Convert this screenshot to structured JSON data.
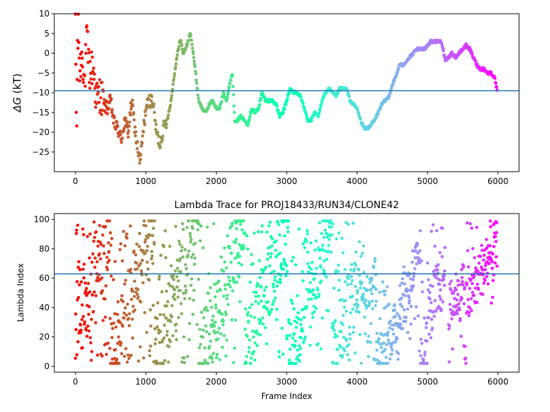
{
  "chart_data": [
    {
      "type": "scatter",
      "title": "",
      "xlabel": "",
      "ylabel": "ΔG (kT)",
      "ylabel_main": "ΔG",
      "ylabel_unit": " (kT)",
      "xlim": [
        -300,
        6300
      ],
      "ylim": [
        -30,
        10
      ],
      "xticks": [
        0,
        1000,
        2000,
        3000,
        4000,
        5000,
        6000
      ],
      "yticks": [
        -25,
        -20,
        -15,
        -10,
        -5,
        0,
        5,
        10
      ],
      "hline": -9.5,
      "hline_color": "#1f77b4",
      "colormap": "rainbow_r",
      "grid": false,
      "series": [
        {
          "trace_points": [
            [
              0,
              10
            ],
            [
              15,
              -22
            ],
            [
              30,
              2
            ],
            [
              45,
              6
            ],
            [
              60,
              -5
            ],
            [
              80,
              -2
            ],
            [
              100,
              0
            ],
            [
              130,
              -8
            ],
            [
              160,
              4
            ],
            [
              200,
              -5
            ],
            [
              250,
              -3
            ],
            [
              300,
              -12
            ],
            [
              350,
              -10
            ],
            [
              400,
              -13
            ],
            [
              450,
              -14
            ],
            [
              500,
              -12
            ],
            [
              550,
              -18
            ],
            [
              600,
              -19
            ],
            [
              650,
              -22
            ],
            [
              700,
              -17
            ],
            [
              750,
              -20
            ],
            [
              800,
              -12
            ],
            [
              850,
              -20
            ],
            [
              900,
              -26
            ],
            [
              920,
              -28
            ],
            [
              950,
              -22
            ],
            [
              1000,
              -14
            ],
            [
              1050,
              -12
            ],
            [
              1100,
              -12
            ],
            [
              1150,
              -20
            ],
            [
              1200,
              -23
            ],
            [
              1250,
              -19
            ],
            [
              1300,
              -17
            ],
            [
              1350,
              -13
            ],
            [
              1400,
              -6
            ],
            [
              1450,
              0
            ],
            [
              1480,
              3
            ],
            [
              1500,
              3
            ],
            [
              1530,
              0
            ],
            [
              1560,
              1
            ],
            [
              1600,
              3
            ],
            [
              1630,
              5
            ],
            [
              1660,
              2
            ],
            [
              1700,
              -4
            ],
            [
              1750,
              -12
            ],
            [
              1800,
              -14
            ],
            [
              1850,
              -15
            ],
            [
              1900,
              -13
            ],
            [
              1950,
              -12
            ],
            [
              2000,
              -14
            ],
            [
              2050,
              -14
            ],
            [
              2100,
              -10
            ],
            [
              2150,
              -12
            ],
            [
              2200,
              -7
            ],
            [
              2230,
              -5
            ],
            [
              2260,
              -17
            ],
            [
              2300,
              -17
            ],
            [
              2350,
              -16
            ],
            [
              2400,
              -17
            ],
            [
              2450,
              -18
            ],
            [
              2500,
              -14
            ],
            [
              2550,
              -15
            ],
            [
              2600,
              -14
            ],
            [
              2650,
              -10
            ],
            [
              2700,
              -12
            ],
            [
              2750,
              -12
            ],
            [
              2800,
              -12
            ],
            [
              2850,
              -13
            ],
            [
              2900,
              -16
            ],
            [
              2950,
              -15
            ],
            [
              3000,
              -12
            ],
            [
              3050,
              -9
            ],
            [
              3100,
              -10
            ],
            [
              3150,
              -10
            ],
            [
              3200,
              -11
            ],
            [
              3250,
              -14
            ],
            [
              3300,
              -17
            ],
            [
              3350,
              -17
            ],
            [
              3400,
              -15
            ],
            [
              3450,
              -16
            ],
            [
              3500,
              -12
            ],
            [
              3550,
              -10
            ],
            [
              3600,
              -9
            ],
            [
              3650,
              -10
            ],
            [
              3700,
              -11
            ],
            [
              3750,
              -9
            ],
            [
              3800,
              -9
            ],
            [
              3850,
              -9
            ],
            [
              3900,
              -12
            ],
            [
              3950,
              -13
            ],
            [
              4000,
              -14
            ],
            [
              4050,
              -17
            ],
            [
              4100,
              -19
            ],
            [
              4150,
              -19
            ],
            [
              4200,
              -18
            ],
            [
              4250,
              -17
            ],
            [
              4300,
              -15
            ],
            [
              4350,
              -13
            ],
            [
              4400,
              -12
            ],
            [
              4450,
              -11
            ],
            [
              4500,
              -8
            ],
            [
              4550,
              -6
            ],
            [
              4600,
              -3
            ],
            [
              4650,
              -3
            ],
            [
              4700,
              -2
            ],
            [
              4750,
              -1
            ],
            [
              4800,
              0
            ],
            [
              4850,
              1
            ],
            [
              4900,
              1
            ],
            [
              4950,
              1
            ],
            [
              5000,
              2
            ],
            [
              5050,
              3
            ],
            [
              5100,
              3
            ],
            [
              5150,
              3
            ],
            [
              5200,
              3
            ],
            [
              5250,
              -2
            ],
            [
              5300,
              -1
            ],
            [
              5350,
              0
            ],
            [
              5400,
              -1
            ],
            [
              5450,
              0
            ],
            [
              5500,
              1
            ],
            [
              5550,
              2
            ],
            [
              5600,
              1
            ],
            [
              5650,
              -1
            ],
            [
              5700,
              -3
            ],
            [
              5750,
              -4
            ],
            [
              5800,
              -4
            ],
            [
              5850,
              -5
            ],
            [
              5900,
              -5
            ],
            [
              5950,
              -6
            ],
            [
              5990,
              -9.5
            ]
          ]
        }
      ]
    },
    {
      "type": "scatter",
      "title": "Lambda Trace for PROJ18433/RUN34/CLONE42",
      "xlabel": "Frame Index",
      "ylabel": "Lambda Index",
      "xlim": [
        -300,
        6300
      ],
      "ylim": [
        -4,
        104
      ],
      "xticks": [
        0,
        1000,
        2000,
        3000,
        4000,
        5000,
        6000
      ],
      "yticks": [
        0,
        20,
        40,
        60,
        80,
        100
      ],
      "hline": 63,
      "hline_color": "#1f77b4",
      "colormap": "rainbow_r",
      "grid": false,
      "series": [
        {
          "density_bands": [
            [
              0,
              200,
              2,
              99
            ],
            [
              200,
              1000,
              2,
              99
            ],
            [
              1000,
              1650,
              2,
              99
            ],
            [
              1650,
              3200,
              2,
              99
            ],
            [
              3200,
              4100,
              2,
              99
            ],
            [
              4100,
              4600,
              2,
              60
            ],
            [
              4600,
              5000,
              2,
              75
            ],
            [
              5000,
              5250,
              20,
              99
            ],
            [
              5300,
              5550,
              2,
              60
            ],
            [
              5550,
              6000,
              40,
              99
            ]
          ]
        }
      ]
    }
  ]
}
